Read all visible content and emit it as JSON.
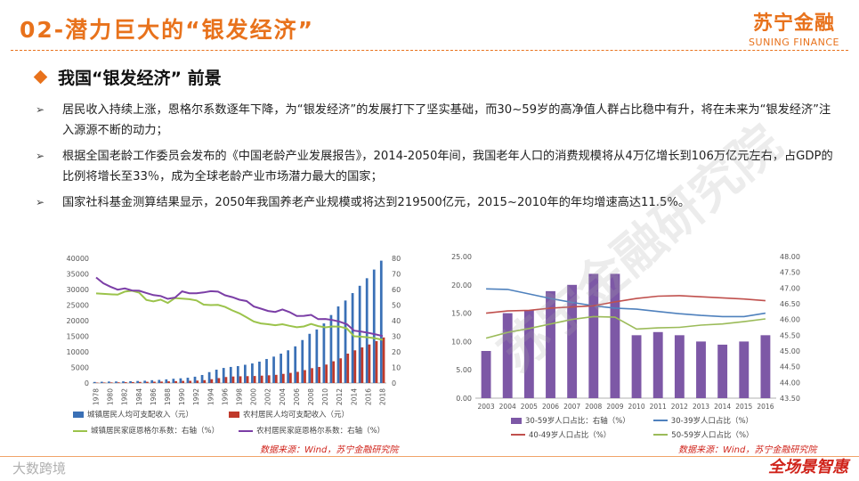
{
  "header": {
    "title": "02-潜力巨大的“银发经济”",
    "logo_cn": "苏宁金融",
    "logo_en": "SUNING FINANCE"
  },
  "section": {
    "title": "我国“银发经济” 前景"
  },
  "bullets": [
    {
      "text": "居民收入持续上涨，恩格尔系数逐年下降，为“银发经济”的发展打下了坚实基础，而30~59岁的高净值人群占比稳中有升，将在未来为“银发经济”注入源源不断的动力；"
    },
    {
      "text": "根据全国老龄工作委员会发布的《中国老龄产业发展报告》，2014-2050年间，我国老年人口的消费规模将从4万亿增长到106万亿元左右，占GDP的比例将增长至33％，成为全球老龄产业市场潜力最大的国家；"
    },
    {
      "text": "国家社科基金测算结果显示，2050年我国养老产业规模或将达到219500亿元，2015~2010年的年均增速高达11.5%。"
    }
  ],
  "watermark": "苏宁金融研究院",
  "footer": {
    "left": "大数跨境",
    "right": "全场景智惠"
  },
  "colors": {
    "accent": "#e8721c",
    "blue": "#3a70b6",
    "red": "#c0392b",
    "green": "#9bc34b",
    "purple": "#7b3ea6",
    "bar": "#7d58a6",
    "line_blue": "#4f81bd",
    "line_red": "#c0504d",
    "line_green": "#9bbb59"
  },
  "chart_data": [
    {
      "type": "bar",
      "categories": [
        "1978",
        "1979",
        "1980",
        "1981",
        "1982",
        "1983",
        "1984",
        "1985",
        "1986",
        "1987",
        "1988",
        "1989",
        "1990",
        "1991",
        "1992",
        "1993",
        "1994",
        "1995",
        "1996",
        "1997",
        "1998",
        "1999",
        "2000",
        "2001",
        "2002",
        "2003",
        "2004",
        "2005",
        "2006",
        "2007",
        "2008",
        "2009",
        "2010",
        "2011",
        "2012",
        "2013",
        "2014",
        "2015",
        "2016",
        "2017",
        "2018"
      ],
      "xtick_labels": [
        "1978",
        "1980",
        "1982",
        "1984",
        "1986",
        "1988",
        "1990",
        "1992",
        "1994",
        "1996",
        "1998",
        "2000",
        "2002",
        "2004",
        "2006",
        "2008",
        "2010",
        "2012",
        "2014",
        "2016",
        "2018"
      ],
      "ylim": [
        0,
        40000
      ],
      "yticks": [
        "0",
        "5000",
        "10000",
        "15000",
        "20000",
        "25000",
        "30000",
        "35000",
        "40000"
      ],
      "y2lim": [
        0,
        80
      ],
      "y2ticks": [
        "0",
        "10",
        "20",
        "30",
        "40",
        "50",
        "60",
        "70",
        "80"
      ],
      "series": [
        {
          "name": "城镇居民人均可支配收入（元）",
          "kind": "bar",
          "axis": "left",
          "values": [
            343,
            405,
            478,
            500,
            535,
            573,
            660,
            739,
            900,
            1002,
            1180,
            1374,
            1510,
            1700,
            2027,
            2577,
            3496,
            4283,
            4839,
            5160,
            5425,
            5854,
            6280,
            6860,
            7703,
            8472,
            9422,
            10493,
            11760,
            13786,
            15781,
            17175,
            19109,
            21810,
            24565,
            26467,
            28844,
            31195,
            33616,
            36396,
            39251
          ]
        },
        {
          "name": "农村居民人均可支配收入（元）",
          "kind": "bar",
          "axis": "left",
          "values": [
            134,
            160,
            191,
            223,
            270,
            310,
            355,
            398,
            424,
            463,
            545,
            602,
            686,
            709,
            784,
            922,
            1221,
            1578,
            1926,
            2090,
            2162,
            2210,
            2253,
            2366,
            2476,
            2622,
            2936,
            3255,
            3587,
            4140,
            4761,
            5153,
            5919,
            6977,
            7917,
            9430,
            10489,
            11422,
            12363,
            13432,
            14617
          ]
        },
        {
          "name": "城镇居民家庭恩格尔系数：右轴（%）",
          "kind": "line",
          "axis": "right",
          "values": [
            57.5,
            57.2,
            56.9,
            56.7,
            58.6,
            59.2,
            58.0,
            53.3,
            52.4,
            53.5,
            51.4,
            54.5,
            54.2,
            53.8,
            53.0,
            50.3,
            50.0,
            50.1,
            48.8,
            46.6,
            44.7,
            42.1,
            39.4,
            38.2,
            37.7,
            37.1,
            37.7,
            36.7,
            35.8,
            36.3,
            37.9,
            36.5,
            35.7,
            36.3,
            36.2,
            35.0,
            30.0,
            29.7,
            29.3,
            28.6,
            27.7
          ]
        },
        {
          "name": "农村居民家庭恩格尔系数：右轴（%）",
          "kind": "line",
          "axis": "right",
          "values": [
            67.7,
            64.0,
            61.8,
            59.9,
            60.7,
            59.4,
            59.2,
            57.8,
            56.4,
            55.8,
            54.0,
            54.8,
            58.8,
            57.6,
            57.6,
            58.1,
            58.9,
            58.6,
            56.3,
            55.1,
            53.4,
            52.6,
            49.1,
            47.7,
            46.2,
            45.6,
            47.2,
            45.5,
            43.0,
            43.1,
            43.7,
            41.0,
            41.1,
            40.4,
            39.3,
            37.7,
            33.6,
            33.0,
            32.2,
            31.2,
            30.1
          ]
        }
      ],
      "source": "数据来源：Wind，苏宁金融研究院"
    },
    {
      "type": "bar",
      "categories": [
        "2003",
        "2004",
        "2005",
        "2006",
        "2007",
        "2008",
        "2009",
        "2010",
        "2011",
        "2012",
        "2013",
        "2014",
        "2015",
        "2016"
      ],
      "ylim": [
        0,
        25
      ],
      "yticks": [
        "0.00",
        "5.00",
        "10.00",
        "15.00",
        "20.00",
        "25.00"
      ],
      "y2lim": [
        43.5,
        48
      ],
      "y2ticks": [
        "43.50",
        "44.00",
        "44.50",
        "45.00",
        "45.50",
        "46.00",
        "46.50",
        "47.00",
        "47.50",
        "48.00"
      ],
      "series": [
        {
          "name": "30-59岁人口占比：右轴（%）",
          "kind": "bar",
          "axis": "right",
          "values": [
            45.0,
            46.2,
            46.3,
            46.9,
            47.1,
            47.45,
            47.45,
            45.5,
            45.6,
            45.5,
            45.3,
            45.2,
            45.3,
            45.5
          ]
        },
        {
          "name": "30-39岁人口占比（%）",
          "kind": "line",
          "axis": "left",
          "values": [
            19.3,
            19.2,
            18.4,
            17.6,
            16.9,
            16.3,
            15.9,
            15.7,
            15.3,
            14.9,
            14.6,
            14.4,
            14.4,
            15.0
          ]
        },
        {
          "name": "40-49岁人口占比（%）",
          "kind": "line",
          "axis": "left",
          "values": [
            15.0,
            15.4,
            15.5,
            15.9,
            16.1,
            16.3,
            17.0,
            17.6,
            18.0,
            18.1,
            17.9,
            17.7,
            17.5,
            17.2
          ]
        },
        {
          "name": "50-59岁人口占比（%）",
          "kind": "line",
          "axis": "left",
          "values": [
            10.6,
            11.6,
            12.3,
            13.1,
            13.9,
            14.4,
            14.3,
            12.2,
            12.4,
            12.5,
            12.9,
            13.1,
            13.5,
            14.0
          ]
        }
      ],
      "source": "数据来源：Wind，苏宁金融研究院"
    }
  ]
}
